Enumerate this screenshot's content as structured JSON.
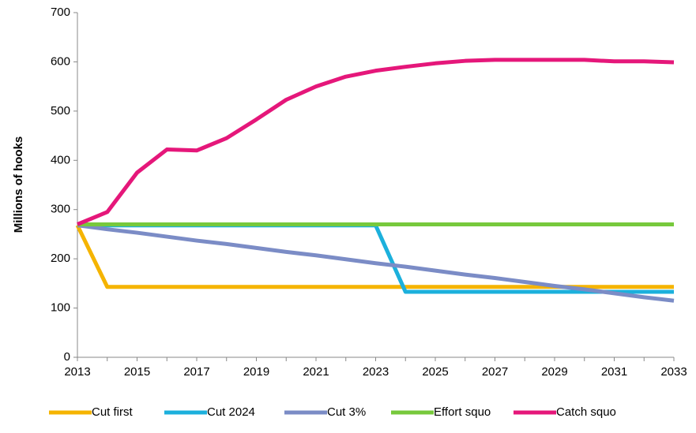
{
  "chart_data": {
    "type": "line",
    "ylabel": "Millions of hooks",
    "x": [
      2013,
      2014,
      2015,
      2016,
      2017,
      2018,
      2019,
      2020,
      2021,
      2022,
      2023,
      2024,
      2025,
      2026,
      2027,
      2028,
      2029,
      2030,
      2031,
      2032,
      2033
    ],
    "xlim": [
      2013,
      2033
    ],
    "xticks": [
      2013,
      2015,
      2017,
      2019,
      2021,
      2023,
      2025,
      2027,
      2029,
      2031,
      2033
    ],
    "ylim": [
      0,
      700
    ],
    "yticks": [
      0,
      100,
      200,
      300,
      400,
      500,
      600,
      700
    ],
    "legend": "bottom",
    "series": [
      {
        "name": "Cut first",
        "color": "#f5b400",
        "values": [
          268,
          143,
          143,
          143,
          143,
          143,
          143,
          143,
          143,
          143,
          143,
          143,
          143,
          143,
          143,
          143,
          143,
          143,
          143,
          143,
          143
        ]
      },
      {
        "name": "Cut 2024",
        "color": "#1cb0dc",
        "values": [
          268,
          268,
          268,
          268,
          268,
          268,
          268,
          268,
          268,
          268,
          268,
          133,
          133,
          133,
          133,
          133,
          133,
          133,
          133,
          133,
          133
        ]
      },
      {
        "name": "Cut 3%",
        "color": "#7b8cc6",
        "values": [
          268,
          260,
          253,
          245,
          237,
          230,
          222,
          214,
          207,
          199,
          191,
          184,
          176,
          168,
          161,
          153,
          145,
          138,
          130,
          122,
          115
        ]
      },
      {
        "name": "Effort squo",
        "color": "#77c93c",
        "values": [
          270,
          270,
          270,
          270,
          270,
          270,
          270,
          270,
          270,
          270,
          270,
          270,
          270,
          270,
          270,
          270,
          270,
          270,
          270,
          270,
          270
        ]
      },
      {
        "name": "Catch squo",
        "color": "#e5177a",
        "values": [
          270,
          295,
          375,
          422,
          420,
          445,
          483,
          523,
          550,
          570,
          582,
          590,
          597,
          602,
          604,
          604,
          604,
          604,
          601,
          601,
          599
        ]
      }
    ]
  }
}
